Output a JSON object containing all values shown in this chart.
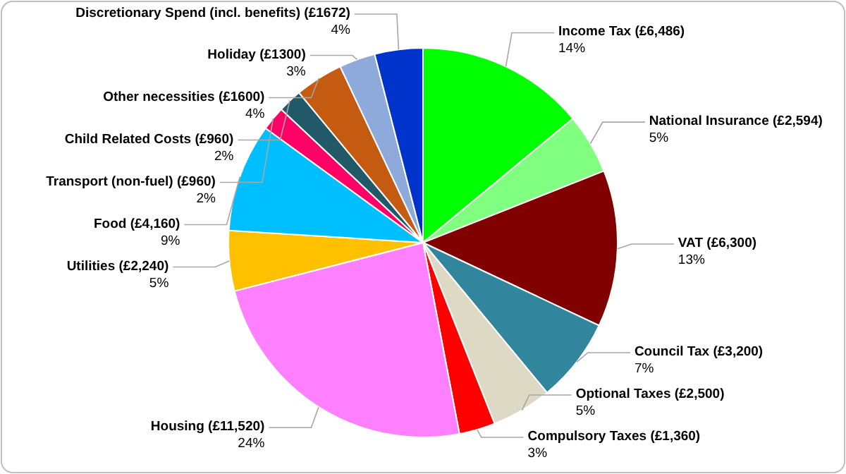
{
  "chart_data": {
    "type": "pie",
    "categories": [
      "Income Tax (£6,486)",
      "National Insurance (£2,594)",
      "VAT (£6,300)",
      "Council Tax (£3,200)",
      "Optional Taxes (£2,500)",
      "Compulsory Taxes (£1,360)",
      "Housing (£11,520)",
      "Utilities (£2,240)",
      "Food (£4,160)",
      "Transport (non-fuel) (£960)",
      "Child Related Costs (£960)",
      "Other necessities (£1600)",
      "Holiday (£1300)",
      "Discretionary Spend (incl. benefits) (£1672)"
    ],
    "values": [
      14,
      5,
      13,
      7,
      5,
      3,
      24,
      5,
      9,
      2,
      2,
      4,
      3,
      4
    ],
    "value_labels": [
      "14%",
      "5%",
      "13%",
      "7%",
      "5%",
      "3%",
      "24%",
      "5%",
      "9%",
      "2%",
      "2%",
      "4%",
      "3%",
      "4%"
    ],
    "colors": [
      "#00ff00",
      "#80ff80",
      "#800000",
      "#31859c",
      "#ddd9c4",
      "#ff0000",
      "#ff80ff",
      "#ffc000",
      "#00bfff",
      "#ff0066",
      "#215968",
      "#c55a11",
      "#8eaadb",
      "#0033cc"
    ]
  }
}
